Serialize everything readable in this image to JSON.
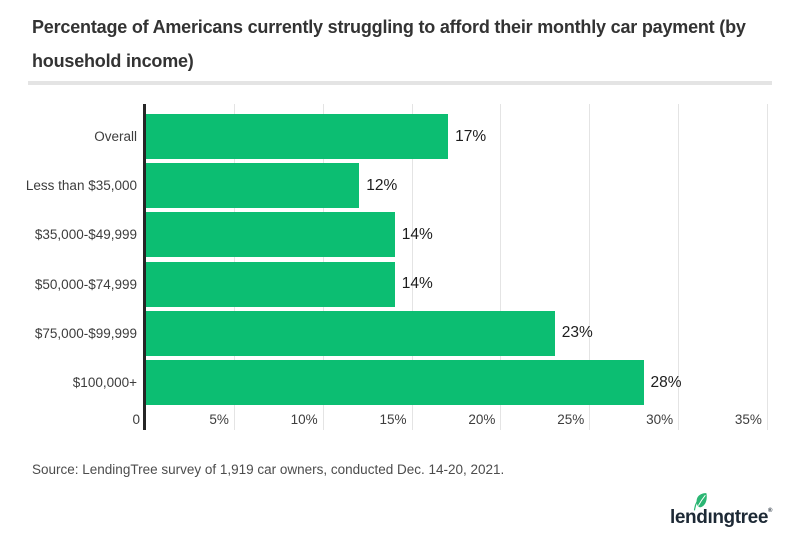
{
  "header": {
    "title_line1": "Percentage of Americans currently struggling to afford their monthly car payment (by",
    "title_line2": "household income)"
  },
  "footer": {
    "source": "Source: LendingTree survey of 1,919 car owners, conducted Dec. 14-20, 2021.",
    "logo": {
      "text": "lendingtree",
      "trademark": "®",
      "leaf_icon": "leaf-icon"
    }
  },
  "colors": {
    "bar": "#0cbe72",
    "axis": "#262626",
    "grid": "#e4e4e4",
    "divider": "#e4e4e4",
    "title_text": "#333333",
    "label_text": "#3d3d3d",
    "value_text": "#1c1c1c",
    "source_text": "#4c4c4c",
    "logo_navy": "#1d2935",
    "leaf_green": "#2bb673"
  },
  "chart_data": {
    "type": "bar",
    "orientation": "horizontal",
    "title": "Percentage of Americans currently struggling to afford their monthly car payment (by household income)",
    "categories": [
      "Overall",
      "Less than $35,000",
      "$35,000-$49,999",
      "$50,000-$74,999",
      "$75,000-$99,999",
      "$100,000+"
    ],
    "values": [
      17,
      12,
      14,
      14,
      23,
      28
    ],
    "value_labels": [
      "17%",
      "12%",
      "14%",
      "14%",
      "23%",
      "28%"
    ],
    "x_ticks": [
      {
        "value": 0,
        "label": "0"
      },
      {
        "value": 5,
        "label": "5%"
      },
      {
        "value": 10,
        "label": "10%"
      },
      {
        "value": 15,
        "label": "15%"
      },
      {
        "value": 20,
        "label": "20%"
      },
      {
        "value": 25,
        "label": "25%"
      },
      {
        "value": 30,
        "label": "30%"
      },
      {
        "value": 35,
        "label": "35%"
      }
    ],
    "xlim": [
      0,
      35
    ],
    "xlabel": "",
    "ylabel": "",
    "grid": true,
    "legend": "none"
  }
}
